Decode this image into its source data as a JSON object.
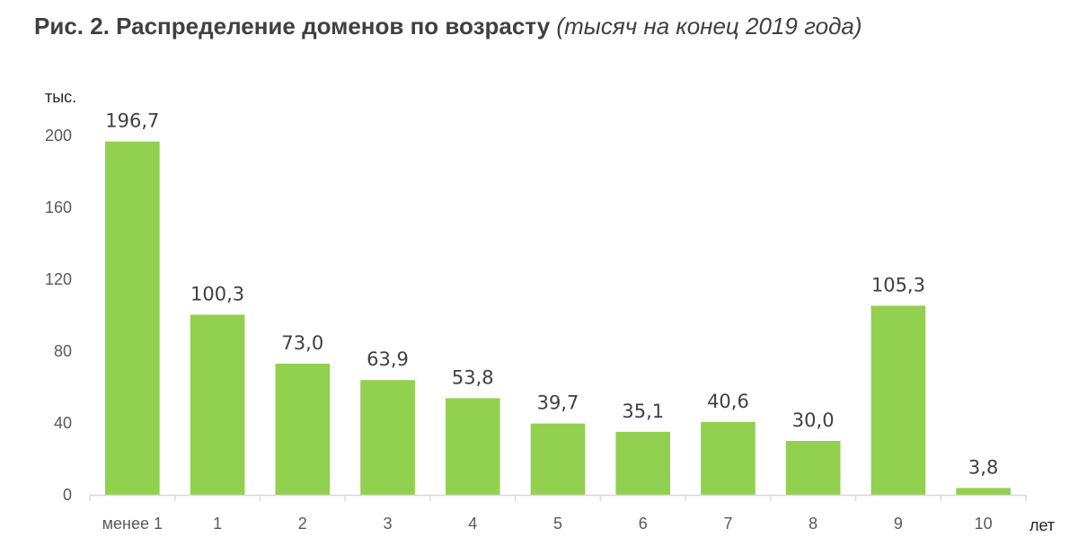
{
  "title": {
    "main": "Рис. 2. Распределение доменов по возрасту",
    "sub": "(тысяч на конец 2019 года)"
  },
  "chart_data": {
    "type": "bar",
    "title": "Рис. 2. Распределение доменов по возрасту (тысяч на конец 2019 года)",
    "categories": [
      "менее 1",
      "1",
      "2",
      "3",
      "4",
      "5",
      "6",
      "7",
      "8",
      "9",
      "10"
    ],
    "values": [
      196.7,
      100.3,
      73.0,
      63.9,
      53.8,
      39.7,
      35.1,
      40.6,
      30.0,
      105.3,
      3.8
    ],
    "value_labels": [
      "196,7",
      "100,3",
      "73,0",
      "63,9",
      "53,8",
      "39,7",
      "35,1",
      "40,6",
      "30,0",
      "105,3",
      "3,8"
    ],
    "yticks": [
      0,
      40,
      80,
      120,
      160,
      200
    ],
    "ylim": [
      0,
      200
    ],
    "ylabel": "тыс.",
    "xlabel": "лет",
    "grid": false,
    "legend": "none",
    "bar_color": "#92D050",
    "axis_color": "#D9D9D9"
  }
}
